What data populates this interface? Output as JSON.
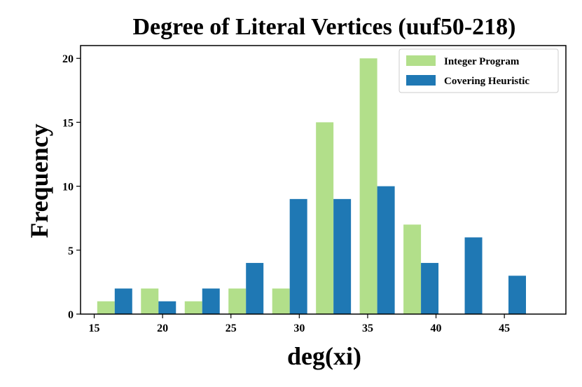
{
  "chart_data": {
    "type": "bar",
    "title": "Degree of Literal Vertices (uuf50-218)",
    "xlabel": "deg(xi)",
    "ylabel": "Frequency",
    "xlim": [
      14,
      49.5
    ],
    "ylim": [
      0,
      21
    ],
    "xticks": [
      15,
      20,
      25,
      30,
      35,
      40,
      45
    ],
    "yticks": [
      0,
      5,
      10,
      15,
      20
    ],
    "grid": false,
    "legend_position": "top-right",
    "bin_centers": [
      16.5,
      19.7,
      22.9,
      26.1,
      29.3,
      32.5,
      35.7,
      38.9,
      42.1,
      45.3
    ],
    "bar_width": 1.28,
    "series": [
      {
        "name": "Integer Program",
        "color": "#b2df8a",
        "values": [
          1,
          2,
          1,
          2,
          2,
          15,
          20,
          7,
          0,
          0
        ]
      },
      {
        "name": "Covering Heuristic",
        "color": "#1f78b4",
        "values": [
          2,
          1,
          2,
          4,
          9,
          9,
          10,
          4,
          6,
          3
        ]
      }
    ]
  }
}
